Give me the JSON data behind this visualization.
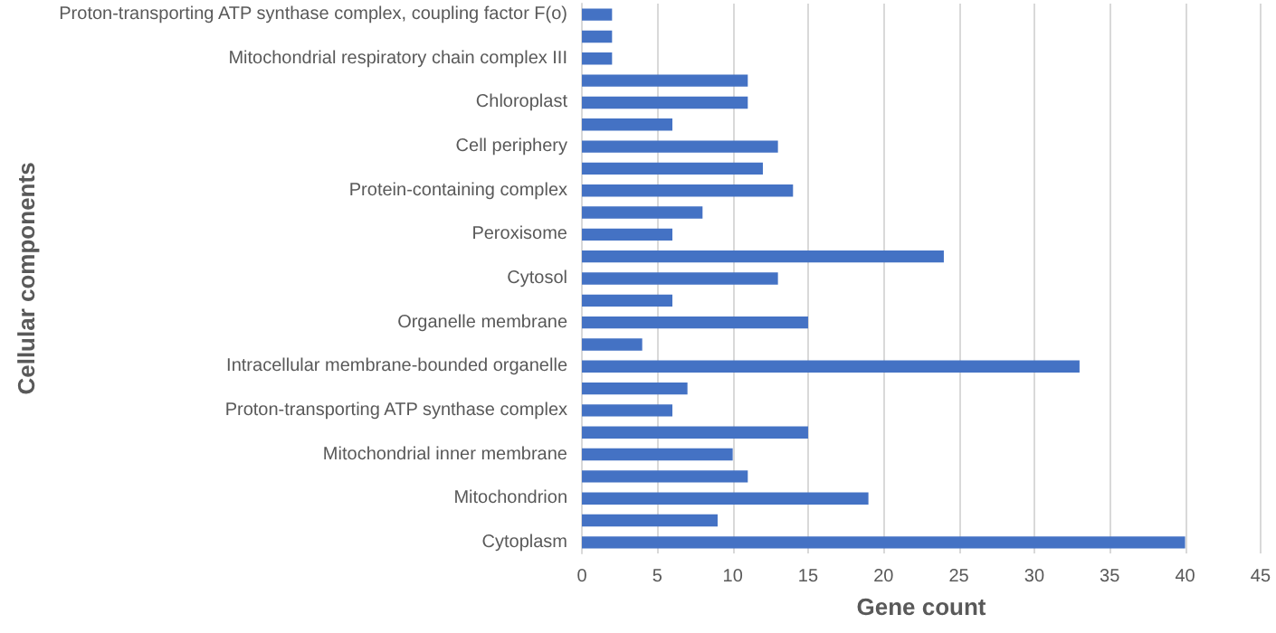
{
  "chart_data": {
    "type": "bar",
    "orientation": "horizontal",
    "xlabel": "Gene count",
    "ylabel": "Cellular components",
    "categories": [
      "Proton-transporting ATP synthase complex, coupling factor F(o)",
      null,
      "Mitochondrial respiratory chain complex III",
      null,
      "Chloroplast",
      null,
      "Cell periphery",
      null,
      "Protein-containing complex",
      null,
      "Peroxisome",
      null,
      "Cytosol",
      null,
      "Organelle membrane",
      null,
      "Intracellular membrane-bounded organelle",
      null,
      "Proton-transporting ATP synthase complex",
      null,
      "Mitochondrial inner membrane",
      null,
      "Mitochondrion",
      null,
      "Cytoplasm"
    ],
    "values": [
      2,
      2,
      2,
      11,
      11,
      6,
      13,
      12,
      14,
      8,
      6,
      24,
      13,
      6,
      15,
      4,
      33,
      7,
      6,
      15,
      10,
      11,
      19,
      9,
      40
    ],
    "color": "#4472c4",
    "xlim": [
      0,
      45
    ],
    "xticks": [
      0,
      5,
      10,
      15,
      20,
      25,
      30,
      35,
      40,
      45
    ],
    "grid": "x"
  }
}
